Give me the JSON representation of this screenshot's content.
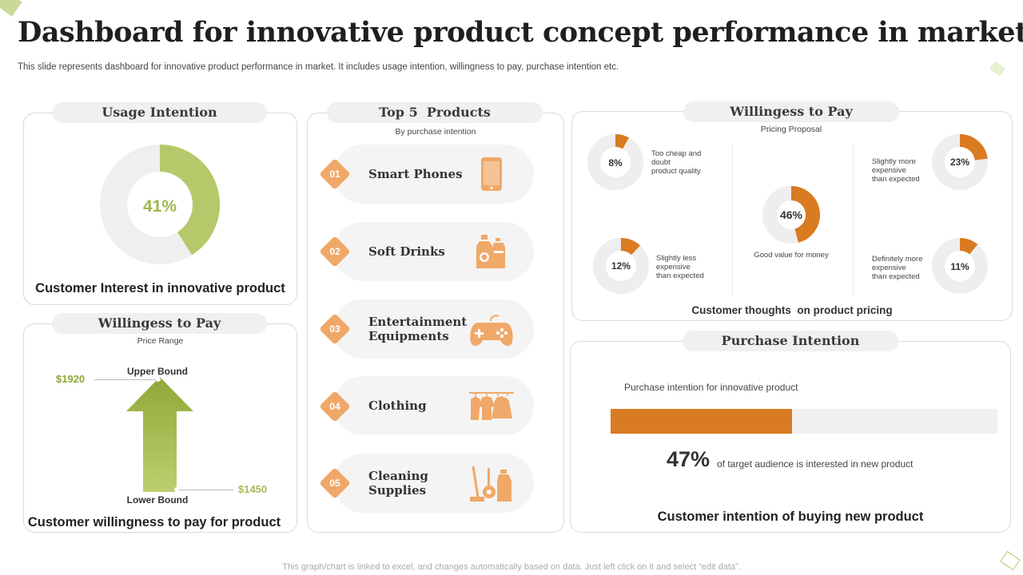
{
  "title": "Dashboard for innovative product concept performance in market",
  "subtitle": "This slide represents dashboard for innovative product performance in market. It includes usage intention, willingness to pay,  purchase intention etc.",
  "usage": {
    "header": "Usage Intention",
    "percent": 41,
    "percent_label": "41%",
    "caption": "Customer Interest in innovative product",
    "color": "#b5c96a"
  },
  "wtp_left": {
    "header": "Willingess to Pay",
    "sub": "Price Range",
    "upper_label": "Upper Bound",
    "lower_label": "Lower Bound",
    "upper_value": "$1920",
    "lower_value": "$1450",
    "caption": "Customer willingness to pay for product"
  },
  "products": {
    "header": "Top 5  Products",
    "sub": "By purchase intention",
    "items": [
      {
        "num": "01",
        "name": "Smart Phones",
        "icon": "smartphone-icon"
      },
      {
        "num": "02",
        "name": "Soft Drinks",
        "icon": "soft-drinks-icon"
      },
      {
        "num": "03",
        "name": "Entertainment Equipments",
        "line1": "Entertainment",
        "line2": "Equipments",
        "icon": "gamepad-icon"
      },
      {
        "num": "04",
        "name": "Clothing",
        "icon": "clothing-icon"
      },
      {
        "num": "05",
        "name": "Cleaning Supplies",
        "line1": "Cleaning",
        "line2": "Supplies",
        "icon": "cleaning-supplies-icon"
      }
    ]
  },
  "pricing": {
    "header": "Willingess to Pay",
    "sub": "Pricing Proposal",
    "caption": "Customer thoughts  on product pricing",
    "accent": "#d97b21",
    "donuts": [
      {
        "value": 8,
        "label": "8%",
        "desc1": "Too cheap and",
        "desc2": "doubt",
        "desc3": "product quality"
      },
      {
        "value": 12,
        "label": "12%",
        "desc1": "Slightly less",
        "desc2": "expensive",
        "desc3": "than expected"
      },
      {
        "value": 46,
        "label": "46%",
        "desc1": "Good value for money"
      },
      {
        "value": 23,
        "label": "23%",
        "desc1": "Slightly more",
        "desc2": "expensive",
        "desc3": "than expected"
      },
      {
        "value": 11,
        "label": "11%",
        "desc1": "Definitely more",
        "desc2": "expensive",
        "desc3": "than expected"
      }
    ]
  },
  "purchase": {
    "header": "Purchase Intention",
    "bar_label": "Purchase intention for innovative product",
    "value": 47,
    "value_label": "47%",
    "value_desc": "of target audience is interested in new product",
    "caption": "Customer intention of buying new product"
  },
  "footer": "This graph/chart is linked to excel,  and changes automatically based on data. Just left click on it and select “edit data”."
}
